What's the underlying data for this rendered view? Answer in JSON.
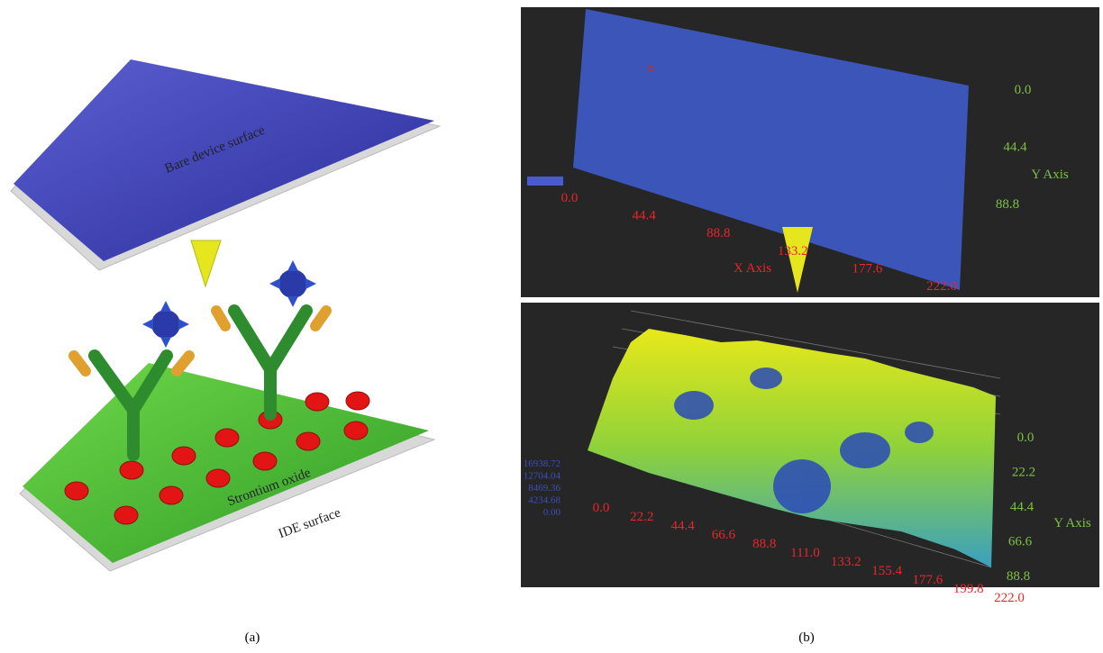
{
  "panel_a": {
    "labels": {
      "bare": "Bare device surface",
      "oxide": "Strontium oxide",
      "ide": "IDE surface"
    },
    "caption": "(a)"
  },
  "panel_b": {
    "caption": "(b)",
    "top": {
      "x_ticks": [
        "0.0",
        "44.4",
        "88.8",
        "133.2",
        "177.6",
        "222.0"
      ],
      "x_axis_label": "X Axis",
      "y_ticks": [
        "0.0",
        "44.4",
        "88.8"
      ],
      "y_axis_label": "Y Axis"
    },
    "bottom": {
      "x_ticks": [
        "0.0",
        "22.2",
        "44.4",
        "66.6",
        "88.8",
        "111.0",
        "133.2",
        "155.4",
        "177.6",
        "199.8",
        "222.0"
      ],
      "y_ticks": [
        "0.0",
        "22.2",
        "44.4",
        "66.6",
        "88.8"
      ],
      "y_axis_label": "Y Axis",
      "z_ticks": [
        "16938.72",
        "12704.04",
        "8469.36",
        "4234.68",
        "0.00"
      ]
    }
  }
}
